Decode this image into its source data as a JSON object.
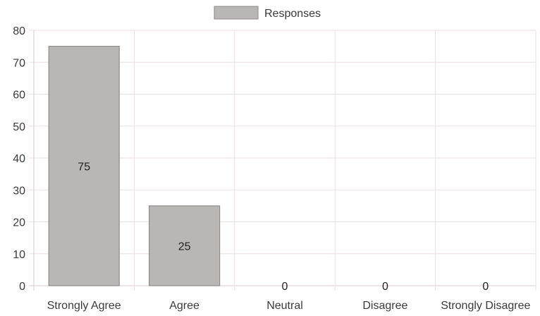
{
  "chart_data": {
    "type": "bar",
    "categories": [
      "Strongly Agree",
      "Agree",
      "Neutral",
      "Disagree",
      "Strongly Disagree"
    ],
    "series": [
      {
        "name": "Responses",
        "values": [
          75,
          25,
          0,
          0,
          0
        ]
      }
    ],
    "data_labels": [
      "75",
      "25",
      "0",
      "0",
      "0"
    ],
    "ylim": [
      0,
      80
    ],
    "yticks": [
      "0",
      "10",
      "20",
      "30",
      "40",
      "50",
      "60",
      "70",
      "80"
    ],
    "grid": true,
    "legend_position": "top-center",
    "colors": {
      "bar_fill": "#b9b6b6",
      "bar_stroke": "#8e8a8a",
      "grid": "#ecdfe2",
      "axis": "#d8c9cc",
      "text": "#3a3a3a"
    }
  }
}
